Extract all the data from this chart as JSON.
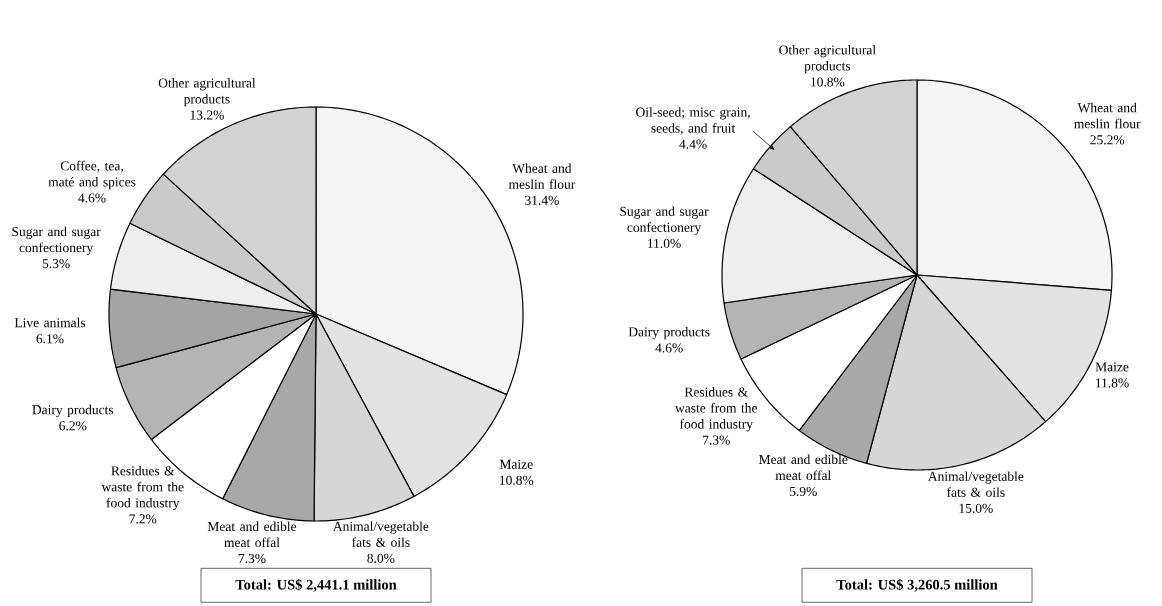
{
  "chart_data": [
    {
      "type": "pie",
      "categories": [
        "Wheat and meslin flour",
        "Maize",
        "Animal/vegetable fats & oils",
        "Meat and edible meat offal",
        "Residues & waste from the food industry",
        "Dairy products",
        "Live animals",
        "Sugar and sugar confectionery",
        "Coffee, tea, maté and spices",
        "Other agricultural products"
      ],
      "values": [
        31.4,
        10.8,
        8.0,
        7.3,
        7.2,
        6.2,
        6.1,
        5.3,
        4.6,
        13.2
      ],
      "value_labels": [
        "31.4%",
        "10.8%",
        "8.0%",
        "7.3%",
        "7.2%",
        "6.2%",
        "6.1%",
        "5.3%",
        "4.6%",
        "13.2%"
      ],
      "colors": [
        "#f4f4f4",
        "#e2e2e2",
        "#d6d6d6",
        "#a8a8a8",
        "#ffffff",
        "#b4b4b4",
        "#a4a4a4",
        "#eeeeee",
        "#cacaca",
        "#d2d2d2"
      ],
      "annotations": [
        "Total: US$ 2,441.1 million"
      ]
    },
    {
      "type": "pie",
      "categories": [
        "Wheat and meslin flour",
        "Maize",
        "Animal/vegetable fats & oils",
        "Meat and edible meat offal",
        "Residues & waste from the food industry",
        "Dairy products",
        "Sugar and sugar confectionery",
        "Oil-seed; misc grain, seeds, and fruit",
        "Other agricultural products"
      ],
      "values": [
        25.2,
        11.8,
        15.0,
        5.9,
        7.3,
        4.6,
        11.0,
        4.4,
        10.8
      ],
      "value_labels": [
        "25.2%",
        "11.8%",
        "15.0%",
        "5.9%",
        "7.3%",
        "4.6%",
        "11.0%",
        "4.4%",
        "10.8%"
      ],
      "colors": [
        "#f4f4f4",
        "#e2e2e2",
        "#d6d6d6",
        "#a8a8a8",
        "#ffffff",
        "#b4b4b4",
        "#eeeeee",
        "#cacaca",
        "#d2d2d2"
      ],
      "annotations": [
        "Total: US$ 3,260.5 million"
      ]
    }
  ]
}
